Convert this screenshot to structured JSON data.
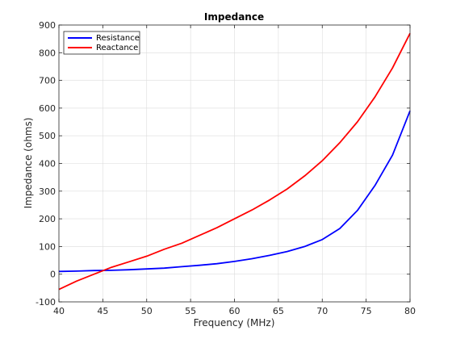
{
  "chart_data": {
    "type": "line",
    "title": "Impedance",
    "xlabel": "Frequency (MHz)",
    "ylabel": "Impedance (ohms)",
    "xlim": [
      40,
      80
    ],
    "ylim": [
      -100,
      900
    ],
    "xticks": [
      40,
      45,
      50,
      55,
      60,
      65,
      70,
      75,
      80
    ],
    "yticks": [
      -100,
      0,
      100,
      200,
      300,
      400,
      500,
      600,
      700,
      800,
      900
    ],
    "grid": true,
    "legend_position": "top-left",
    "x": [
      40,
      42,
      44,
      46,
      48,
      50,
      52,
      54,
      56,
      58,
      60,
      62,
      64,
      66,
      68,
      70,
      72,
      74,
      76,
      78,
      80
    ],
    "series": [
      {
        "name": "Resistance",
        "color": "#0000ff",
        "values": [
          10,
          11,
          13,
          14,
          16,
          19,
          22,
          27,
          32,
          38,
          46,
          56,
          68,
          82,
          100,
          125,
          165,
          230,
          320,
          430,
          590
        ]
      },
      {
        "name": "Reactance",
        "color": "#ff0000",
        "values": [
          -55,
          -25,
          0,
          25,
          45,
          65,
          90,
          112,
          140,
          168,
          200,
          232,
          268,
          308,
          355,
          410,
          475,
          550,
          640,
          745,
          870
        ]
      }
    ]
  }
}
